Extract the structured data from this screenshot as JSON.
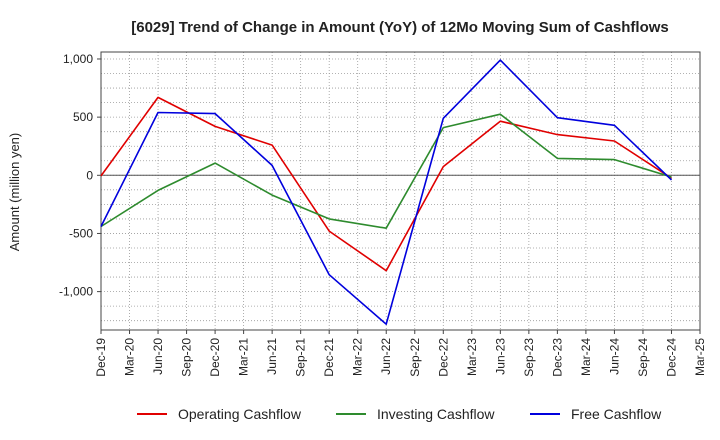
{
  "chart_data": {
    "type": "line",
    "title": "[6029]  Trend of Change in Amount (YoY) of 12Mo Moving Sum of Cashflows",
    "xlabel": "",
    "ylabel": "Amount (million yen)",
    "categories": [
      "Dec-19",
      "Mar-20",
      "Jun-20",
      "Sep-20",
      "Dec-20",
      "Mar-21",
      "Jun-21",
      "Sep-21",
      "Dec-21",
      "Mar-22",
      "Jun-22",
      "Sep-22",
      "Dec-22",
      "Mar-23",
      "Jun-23",
      "Sep-23",
      "Dec-23",
      "Mar-24",
      "Jun-24",
      "Sep-24",
      "Dec-24",
      "Mar-25"
    ],
    "y_ticks": [
      1000,
      500,
      0,
      -500,
      -1000
    ],
    "y_tick_labels": [
      "1,000",
      "500",
      "0",
      "-500",
      "-1,000"
    ],
    "ylim": [
      -1330,
      1060
    ],
    "grid": true,
    "legend_position": "bottom",
    "series": [
      {
        "name": "Operating Cashflow",
        "color": "#e00000",
        "points": [
          {
            "x": "Dec-19",
            "y": -5
          },
          {
            "x": "Jun-20",
            "y": 670
          },
          {
            "x": "Dec-20",
            "y": 420
          },
          {
            "x": "Jun-21",
            "y": 260
          },
          {
            "x": "Dec-21",
            "y": -480
          },
          {
            "x": "Jun-22",
            "y": -820
          },
          {
            "x": "Dec-22",
            "y": 75
          },
          {
            "x": "Jun-23",
            "y": 465
          },
          {
            "x": "Dec-23",
            "y": 350
          },
          {
            "x": "Jun-24",
            "y": 295
          },
          {
            "x": "Dec-24",
            "y": -25
          }
        ]
      },
      {
        "name": "Investing Cashflow",
        "color": "#2e8b2e",
        "points": [
          {
            "x": "Dec-19",
            "y": -440
          },
          {
            "x": "Jun-20",
            "y": -130
          },
          {
            "x": "Dec-20",
            "y": 105
          },
          {
            "x": "Jun-21",
            "y": -170
          },
          {
            "x": "Dec-21",
            "y": -375
          },
          {
            "x": "Jun-22",
            "y": -455
          },
          {
            "x": "Dec-22",
            "y": 410
          },
          {
            "x": "Jun-23",
            "y": 525
          },
          {
            "x": "Dec-23",
            "y": 145
          },
          {
            "x": "Jun-24",
            "y": 135
          },
          {
            "x": "Dec-24",
            "y": -15
          }
        ]
      },
      {
        "name": "Free Cashflow",
        "color": "#0000dd",
        "points": [
          {
            "x": "Dec-19",
            "y": -440
          },
          {
            "x": "Jun-20",
            "y": 540
          },
          {
            "x": "Dec-20",
            "y": 530
          },
          {
            "x": "Jun-21",
            "y": 85
          },
          {
            "x": "Dec-21",
            "y": -855
          },
          {
            "x": "Jun-22",
            "y": -1280
          },
          {
            "x": "Dec-22",
            "y": 490
          },
          {
            "x": "Jun-23",
            "y": 990
          },
          {
            "x": "Dec-23",
            "y": 495
          },
          {
            "x": "Jun-24",
            "y": 430
          },
          {
            "x": "Dec-24",
            "y": -40
          }
        ]
      }
    ]
  }
}
